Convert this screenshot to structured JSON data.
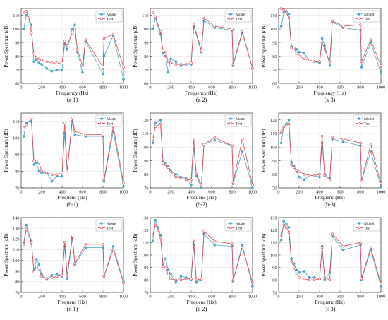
{
  "legend": {
    "model": "Model",
    "test": "Test"
  },
  "colors": {
    "model": "#4aa8c6",
    "test": "#d84a5a",
    "axis": "#333333",
    "grid": "#e6e6e6"
  },
  "chart_data": [
    {
      "id": "a-1",
      "type": "line",
      "title": "(a-1)",
      "xlabel": "Frequency (Hz)",
      "ylabel": "Power Spectrum (dB)",
      "xlim": [
        0,
        1000
      ],
      "ylim": [
        60,
        115
      ],
      "yticks": [
        60,
        70,
        80,
        90,
        100,
        110
      ],
      "xticks": [
        0,
        200,
        400,
        600,
        800,
        1000
      ],
      "grid": true,
      "legend": "top-right",
      "series": [
        {
          "name": "Model",
          "x": [
            25,
            50,
            75,
            100,
            125,
            150,
            175,
            200,
            250,
            300,
            350,
            400,
            425,
            450,
            500,
            525,
            550,
            600,
            630,
            800,
            810,
            900,
            1000
          ],
          "y": [
            100,
            110,
            108,
            103,
            76,
            77,
            75,
            74,
            71,
            69,
            70,
            70,
            89,
            85,
            100,
            103,
            83,
            68,
            91,
            67,
            80,
            95,
            63
          ]
        },
        {
          "name": "Test",
          "x": [
            25,
            50,
            75,
            100,
            125,
            150,
            175,
            200,
            250,
            300,
            350,
            400,
            425,
            450,
            500,
            525,
            550,
            600,
            630,
            800,
            810,
            900,
            1000
          ],
          "y": [
            112,
            113,
            108,
            97,
            82,
            79,
            78,
            77,
            76,
            75,
            75,
            75,
            91,
            88,
            97,
            100,
            85,
            73,
            92,
            72,
            93,
            96,
            72
          ]
        }
      ]
    },
    {
      "id": "a-2",
      "type": "line",
      "title": "(a-2)",
      "xlabel": "Frequency (Hz)",
      "ylabel": "Power Spectrum (dB)",
      "xlim": [
        0,
        1000
      ],
      "ylim": [
        60,
        115
      ],
      "yticks": [
        60,
        70,
        80,
        90,
        100,
        110
      ],
      "xticks": [
        0,
        200,
        400,
        600,
        800,
        1000
      ],
      "grid": true,
      "legend": "top-right",
      "series": [
        {
          "name": "Model",
          "x": [
            25,
            50,
            100,
            125,
            150,
            175,
            200,
            250,
            300,
            350,
            400,
            425,
            500,
            525,
            630,
            800,
            810,
            900,
            1000
          ],
          "y": [
            100,
            108,
            96,
            82,
            80,
            68,
            78,
            76,
            73,
            74,
            74,
            102,
            83,
            106,
            101,
            99,
            73,
            97,
            71
          ]
        },
        {
          "name": "Test",
          "x": [
            25,
            50,
            100,
            125,
            150,
            175,
            200,
            250,
            300,
            350,
            400,
            425,
            500,
            525,
            630,
            800,
            810,
            900,
            1000
          ],
          "y": [
            112,
            109,
            98,
            84,
            83,
            76,
            75,
            74,
            74,
            74,
            75,
            103,
            84,
            108,
            102,
            100,
            74,
            98,
            71
          ]
        }
      ]
    },
    {
      "id": "a-3",
      "type": "line",
      "title": "(a-3)",
      "xlabel": "Frequency (Hz)",
      "ylabel": "Power Spectrum (dB)",
      "xlim": [
        0,
        1000
      ],
      "ylim": [
        60,
        115
      ],
      "yticks": [
        60,
        70,
        80,
        90,
        100,
        110
      ],
      "xticks": [
        0,
        200,
        400,
        600,
        800,
        1000
      ],
      "grid": true,
      "legend": "top-right",
      "series": [
        {
          "name": "Model",
          "x": [
            25,
            50,
            75,
            100,
            125,
            150,
            175,
            200,
            250,
            300,
            350,
            400,
            425,
            450,
            500,
            525,
            630,
            800,
            810,
            900,
            1000
          ],
          "y": [
            102,
            112,
            113,
            111,
            87,
            86,
            85,
            83,
            82,
            77,
            76,
            75,
            93,
            88,
            73,
            105,
            101,
            99,
            72,
            90,
            68
          ]
        },
        {
          "name": "Test",
          "x": [
            25,
            50,
            75,
            100,
            125,
            150,
            175,
            200,
            250,
            300,
            350,
            400,
            425,
            450,
            500,
            525,
            630,
            800,
            810,
            900,
            1000
          ],
          "y": [
            115,
            114,
            112,
            108,
            86,
            86,
            82,
            80,
            78,
            77,
            76,
            76,
            90,
            85,
            76,
            106,
            102,
            103,
            76,
            92,
            73
          ]
        }
      ]
    },
    {
      "id": "b-1",
      "type": "line",
      "title": "(b-1)",
      "xlabel": "Frequenc (Hz)",
      "ylabel": "Power Spectrum (dB)",
      "xlim": [
        0,
        1000
      ],
      "ylim": [
        70,
        115
      ],
      "yticks": [
        70,
        80,
        90,
        100,
        110
      ],
      "xticks": [
        0,
        200,
        400,
        600,
        800,
        1000
      ],
      "grid": true,
      "legend": "top-right",
      "series": [
        {
          "name": "Model",
          "x": [
            25,
            50,
            100,
            125,
            150,
            175,
            200,
            250,
            300,
            350,
            400,
            425,
            450,
            500,
            525,
            630,
            800,
            810,
            900,
            1000
          ],
          "y": [
            101,
            109,
            110,
            84,
            85,
            80,
            79,
            79,
            74,
            77,
            77,
            103,
            80,
            110,
            102,
            101,
            101,
            74,
            104,
            71
          ]
        },
        {
          "name": "Test",
          "x": [
            25,
            50,
            100,
            125,
            150,
            175,
            200,
            250,
            300,
            350,
            400,
            425,
            450,
            500,
            525,
            630,
            800,
            810,
            900,
            1000
          ],
          "y": [
            106,
            108,
            112,
            86,
            86,
            85,
            80,
            79,
            78,
            78,
            79,
            109,
            80,
            112,
            104,
            102,
            102,
            75,
            107,
            73
          ]
        }
      ]
    },
    {
      "id": "b-2",
      "type": "line",
      "title": "(b-2)",
      "xlabel": "Frequenc (Hz)",
      "ylabel": "Power Spectrum (dB)",
      "xlim": [
        0,
        1000
      ],
      "ylim": [
        70,
        125
      ],
      "yticks": [
        70,
        80,
        90,
        100,
        110,
        120
      ],
      "xticks": [
        0,
        200,
        400,
        600,
        800,
        1000
      ],
      "grid": true,
      "legend": "top-right",
      "series": [
        {
          "name": "Model",
          "x": [
            25,
            50,
            100,
            125,
            150,
            175,
            200,
            250,
            300,
            350,
            400,
            425,
            450,
            500,
            525,
            630,
            800,
            810,
            900,
            1000
          ],
          "y": [
            103,
            118,
            120,
            89,
            88,
            86,
            83,
            80,
            78,
            77,
            72,
            99,
            79,
            70,
            102,
            105,
            101,
            73,
            97,
            70
          ]
        },
        {
          "name": "Test",
          "x": [
            25,
            50,
            100,
            125,
            150,
            175,
            200,
            250,
            300,
            350,
            400,
            425,
            450,
            500,
            525,
            630,
            800,
            810,
            900,
            1000
          ],
          "y": [
            106,
            115,
            117,
            88,
            87,
            85,
            82,
            78,
            77,
            76,
            76,
            106,
            80,
            72,
            102,
            107,
            101,
            74,
            106,
            72
          ]
        }
      ]
    },
    {
      "id": "b-3",
      "type": "line",
      "title": "(b-3)",
      "xlabel": "Frequenc (Hz)",
      "ylabel": "Power Spectrum (dB)",
      "xlim": [
        0,
        1000
      ],
      "ylim": [
        70,
        125
      ],
      "yticks": [
        70,
        80,
        90,
        100,
        110,
        120
      ],
      "xticks": [
        0,
        200,
        400,
        600,
        800,
        1000
      ],
      "grid": true,
      "legend": "top-right",
      "series": [
        {
          "name": "Model",
          "x": [
            25,
            50,
            75,
            100,
            125,
            150,
            175,
            200,
            250,
            300,
            350,
            400,
            425,
            450,
            500,
            525,
            630,
            800,
            810,
            900,
            1000
          ],
          "y": [
            103,
            115,
            117,
            120,
            89,
            86,
            82,
            78,
            76,
            79,
            79,
            78,
            103,
            80,
            77,
            106,
            104,
            101,
            75,
            97,
            71
          ]
        },
        {
          "name": "Test",
          "x": [
            25,
            50,
            75,
            100,
            125,
            150,
            175,
            200,
            250,
            300,
            350,
            400,
            425,
            450,
            500,
            525,
            630,
            800,
            810,
            900,
            1000
          ],
          "y": [
            111,
            115,
            116,
            117,
            87,
            85,
            83,
            82,
            80,
            79,
            79,
            80,
            108,
            79,
            76,
            107,
            106,
            103,
            75,
            102,
            73
          ]
        }
      ]
    },
    {
      "id": "c-1",
      "type": "line",
      "title": "(c-1)",
      "xlabel": "Frequenc (Hz)",
      "ylabel": "Power Spectrum (dB)",
      "xlim": [
        0,
        1000
      ],
      "ylim": [
        70,
        140
      ],
      "yticks": [
        70,
        80,
        90,
        100,
        110,
        120,
        130,
        140
      ],
      "xticks": [
        0,
        200,
        400,
        600,
        800,
        1000
      ],
      "grid": true,
      "legend": "top-right",
      "series": [
        {
          "name": "Model",
          "x": [
            25,
            50,
            100,
            125,
            150,
            175,
            200,
            250,
            300,
            350,
            400,
            425,
            450,
            500,
            525,
            630,
            800,
            810,
            900,
            1000
          ],
          "y": [
            116,
            133,
            118,
            90,
            101,
            96,
            87,
            82,
            86,
            87,
            85,
            113,
            83,
            121,
            96,
            112,
            112,
            85,
            113,
            80
          ]
        },
        {
          "name": "Test",
          "x": [
            25,
            50,
            100,
            125,
            150,
            175,
            200,
            250,
            300,
            350,
            400,
            425,
            450,
            500,
            525,
            630,
            800,
            810,
            900,
            1000
          ],
          "y": [
            115,
            129,
            117,
            89,
            94,
            92,
            85,
            83,
            84,
            85,
            86,
            117,
            86,
            123,
            97,
            115,
            115,
            85,
            110,
            79
          ]
        }
      ]
    },
    {
      "id": "c-2",
      "type": "line",
      "title": "(c-2)",
      "xlabel": "Frequenc (Hz)",
      "ylabel": "Power Spectrum (dB)",
      "xlim": [
        0,
        1000
      ],
      "ylim": [
        70,
        130
      ],
      "yticks": [
        70,
        80,
        90,
        100,
        110,
        120,
        130
      ],
      "xticks": [
        0,
        200,
        400,
        600,
        800,
        1000
      ],
      "grid": true,
      "legend": "top-right",
      "series": [
        {
          "name": "Model",
          "x": [
            25,
            50,
            75,
            100,
            125,
            150,
            175,
            200,
            250,
            300,
            350,
            400,
            425,
            450,
            500,
            525,
            630,
            800,
            810,
            900,
            1000
          ],
          "y": [
            111,
            128,
            122,
            116,
            92,
            97,
            88,
            85,
            78,
            83,
            82,
            80,
            108,
            78,
            80,
            117,
            108,
            107,
            79,
            108,
            75
          ]
        },
        {
          "name": "Test",
          "x": [
            25,
            50,
            75,
            100,
            125,
            150,
            175,
            200,
            250,
            300,
            350,
            400,
            425,
            450,
            500,
            525,
            630,
            800,
            810,
            900,
            1000
          ],
          "y": [
            116,
            124,
            120,
            114,
            91,
            90,
            85,
            81,
            80,
            80,
            81,
            81,
            112,
            80,
            81,
            119,
            111,
            109,
            80,
            106,
            78
          ]
        }
      ]
    },
    {
      "id": "c-3",
      "type": "line",
      "title": "(c-3)",
      "xlabel": "Frequenc (Hz)",
      "ylabel": "Power Spectrum (dB)",
      "xlim": [
        0,
        1000
      ],
      "ylim": [
        70,
        130
      ],
      "yticks": [
        70,
        80,
        90,
        100,
        110,
        120,
        130
      ],
      "xticks": [
        0,
        200,
        400,
        600,
        800,
        1000
      ],
      "grid": true,
      "legend": "top-right",
      "series": [
        {
          "name": "Model",
          "x": [
            25,
            50,
            75,
            100,
            125,
            150,
            175,
            200,
            250,
            300,
            350,
            400,
            425,
            450,
            500,
            525,
            630,
            800,
            810,
            900,
            1000
          ],
          "y": [
            112,
            127,
            125,
            122,
            97,
            93,
            88,
            86,
            87,
            82,
            82,
            81,
            107,
            80,
            86,
            115,
            104,
            108,
            80,
            104,
            75
          ]
        },
        {
          "name": "Test",
          "x": [
            25,
            50,
            75,
            100,
            125,
            150,
            175,
            200,
            250,
            300,
            350,
            400,
            425,
            450,
            500,
            525,
            630,
            800,
            810,
            900,
            1000
          ],
          "y": [
            115,
            124,
            122,
            118,
            95,
            90,
            85,
            82,
            81,
            80,
            80,
            81,
            106,
            82,
            80,
            117,
            107,
            110,
            81,
            106,
            77
          ]
        }
      ]
    }
  ]
}
